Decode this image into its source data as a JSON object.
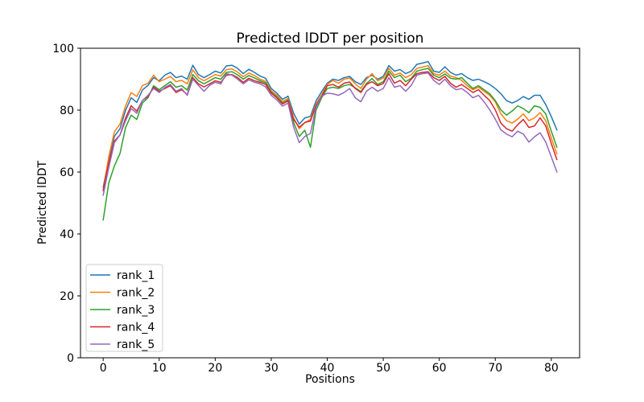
{
  "figure": {
    "title": "Predicted lDDT per position",
    "xlabel": "Positions",
    "ylabel": "Predicted lDDT"
  },
  "chart_data": {
    "type": "line",
    "title": "Predicted lDDT per position",
    "xlabel": "Positions",
    "ylabel": "Predicted lDDT",
    "xlim": [
      -4.05,
      85.05
    ],
    "ylim": [
      0,
      100
    ],
    "xticks": [
      0,
      10,
      20,
      30,
      40,
      50,
      60,
      70,
      80
    ],
    "yticks": [
      0,
      20,
      40,
      60,
      80,
      100
    ],
    "grid": false,
    "legend_position": "lower left",
    "line_width": 1.5,
    "x": [
      0,
      1,
      2,
      3,
      4,
      5,
      6,
      7,
      8,
      9,
      10,
      11,
      12,
      13,
      14,
      15,
      16,
      17,
      18,
      19,
      20,
      21,
      22,
      23,
      24,
      25,
      26,
      27,
      28,
      29,
      30,
      31,
      32,
      33,
      34,
      35,
      36,
      37,
      38,
      39,
      40,
      41,
      42,
      43,
      44,
      45,
      46,
      47,
      48,
      49,
      50,
      51,
      52,
      53,
      54,
      55,
      56,
      57,
      58,
      59,
      60,
      61,
      62,
      63,
      64,
      65,
      66,
      67,
      68,
      69,
      70,
      71,
      72,
      73,
      74,
      75,
      76,
      77,
      78,
      79,
      80,
      81
    ],
    "series": [
      {
        "name": "rank_1",
        "color": "#1f77b4",
        "values": [
          55.0,
          64.5,
          71.5,
          74.0,
          80.0,
          84.0,
          82.5,
          86.5,
          88.0,
          90.5,
          89.5,
          91.3,
          92.2,
          90.5,
          91.0,
          90.0,
          94.5,
          91.5,
          90.5,
          91.5,
          92.6,
          92.0,
          94.3,
          94.5,
          93.5,
          91.8,
          93.2,
          92.2,
          91.0,
          90.3,
          87.0,
          85.5,
          83.5,
          84.5,
          79.0,
          75.5,
          77.5,
          78.0,
          83.0,
          86.0,
          88.7,
          90.0,
          89.6,
          90.5,
          90.9,
          89.2,
          88.3,
          90.5,
          91.3,
          90.0,
          90.9,
          94.4,
          92.6,
          93.1,
          91.8,
          92.6,
          94.8,
          95.2,
          95.7,
          92.6,
          92.2,
          94.0,
          92.2,
          91.3,
          91.8,
          90.5,
          89.6,
          90.0,
          89.2,
          88.3,
          87.0,
          85.3,
          83.1,
          82.3,
          83.1,
          84.4,
          83.5,
          84.8,
          84.8,
          81.8,
          77.9,
          73.6
        ]
      },
      {
        "name": "rank_2",
        "color": "#ff7f0e",
        "values": [
          54.0,
          65.0,
          73.0,
          75.5,
          81.4,
          85.7,
          84.4,
          87.9,
          88.7,
          91.3,
          89.2,
          90.0,
          90.9,
          89.2,
          89.6,
          88.5,
          93.0,
          90.5,
          89.5,
          90.5,
          91.5,
          91.0,
          93.1,
          93.3,
          92.3,
          90.8,
          92.0,
          91.2,
          90.0,
          89.3,
          86.3,
          84.8,
          82.8,
          83.8,
          77.5,
          74.0,
          76.0,
          77.0,
          82.0,
          85.0,
          88.3,
          89.6,
          88.7,
          90.0,
          90.4,
          88.5,
          87.0,
          90.0,
          91.8,
          89.5,
          90.4,
          93.5,
          91.3,
          92.0,
          90.5,
          91.5,
          93.5,
          93.9,
          94.4,
          91.8,
          91.3,
          92.6,
          91.0,
          90.5,
          89.6,
          87.9,
          86.6,
          87.4,
          86.1,
          84.8,
          82.7,
          78.8,
          76.6,
          75.8,
          77.1,
          78.8,
          76.6,
          77.5,
          79.2,
          76.6,
          71.0,
          65.8
        ]
      },
      {
        "name": "rank_3",
        "color": "#2ca02c",
        "values": [
          44.5,
          56.5,
          62.0,
          66.0,
          74.4,
          78.4,
          77.0,
          82.3,
          84.0,
          87.9,
          86.6,
          87.9,
          89.2,
          87.4,
          87.9,
          86.5,
          91.5,
          89.5,
          88.5,
          89.5,
          90.5,
          90.0,
          92.2,
          92.4,
          91.4,
          90.0,
          91.2,
          90.4,
          89.5,
          88.8,
          85.8,
          84.3,
          82.3,
          83.3,
          76.0,
          71.5,
          73.5,
          68.0,
          80.0,
          84.0,
          87.0,
          87.4,
          87.0,
          87.9,
          88.3,
          87.2,
          86.0,
          88.6,
          90.2,
          88.3,
          89.2,
          92.6,
          90.5,
          91.3,
          89.2,
          90.3,
          92.6,
          93.1,
          93.5,
          91.3,
          90.5,
          91.7,
          90.3,
          90.0,
          90.5,
          88.7,
          87.0,
          87.9,
          86.6,
          85.3,
          83.1,
          80.1,
          78.4,
          79.7,
          81.4,
          80.5,
          79.2,
          81.4,
          80.9,
          78.8,
          73.2,
          68.0
        ]
      },
      {
        "name": "rank_4",
        "color": "#d62728",
        "values": [
          54.0,
          63.0,
          70.0,
          72.0,
          77.5,
          81.4,
          79.7,
          83.1,
          84.4,
          87.4,
          86.1,
          87.0,
          87.9,
          85.7,
          86.6,
          85.0,
          90.5,
          88.5,
          87.5,
          88.5,
          89.5,
          89.0,
          91.3,
          91.5,
          90.5,
          89.0,
          90.3,
          89.5,
          89.0,
          88.3,
          85.5,
          84.0,
          82.0,
          83.0,
          77.0,
          74.5,
          76.0,
          76.5,
          81.5,
          84.5,
          87.9,
          88.3,
          87.4,
          88.7,
          89.1,
          87.0,
          85.7,
          88.3,
          89.2,
          87.9,
          88.6,
          91.8,
          88.7,
          89.6,
          87.9,
          90.0,
          91.8,
          92.2,
          92.4,
          90.5,
          89.6,
          90.9,
          88.7,
          87.4,
          88.3,
          87.0,
          85.7,
          86.6,
          84.8,
          83.1,
          80.1,
          75.8,
          74.0,
          73.2,
          75.3,
          77.0,
          74.4,
          74.9,
          77.5,
          74.9,
          69.2,
          64.0
        ]
      },
      {
        "name": "rank_5",
        "color": "#9467bd",
        "values": [
          52.5,
          61.5,
          69.5,
          72.0,
          76.6,
          80.5,
          79.0,
          83.1,
          84.8,
          87.0,
          85.7,
          87.3,
          88.3,
          86.1,
          87.0,
          84.8,
          90.0,
          88.0,
          86.1,
          88.0,
          89.0,
          88.5,
          91.8,
          91.3,
          90.0,
          88.5,
          89.8,
          89.0,
          88.5,
          87.5,
          84.8,
          83.3,
          81.3,
          82.3,
          74.5,
          69.5,
          71.5,
          72.5,
          81.0,
          84.5,
          85.5,
          85.3,
          84.8,
          85.7,
          87.0,
          84.0,
          82.7,
          86.1,
          87.4,
          86.1,
          87.0,
          90.5,
          87.4,
          87.9,
          86.1,
          88.0,
          91.3,
          91.8,
          92.0,
          89.6,
          88.3,
          90.0,
          87.9,
          86.6,
          87.0,
          85.7,
          84.0,
          84.8,
          82.7,
          80.1,
          77.1,
          73.6,
          72.3,
          71.4,
          73.2,
          72.3,
          69.7,
          71.4,
          72.7,
          69.7,
          64.9,
          60.0
        ]
      }
    ]
  }
}
